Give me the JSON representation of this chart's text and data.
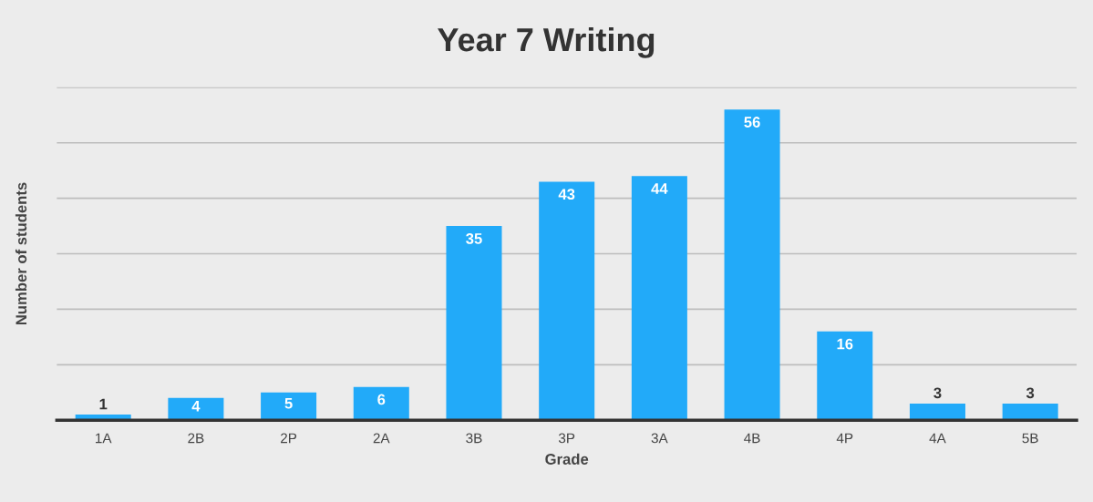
{
  "chart_data": {
    "type": "bar",
    "title": "Year 7 Writing",
    "xlabel": "Grade",
    "ylabel": "Number of students",
    "categories": [
      "1A",
      "2B",
      "2P",
      "2A",
      "3B",
      "3P",
      "3A",
      "4B",
      "4P",
      "4A",
      "5B"
    ],
    "values": [
      1,
      4,
      5,
      6,
      35,
      43,
      44,
      56,
      16,
      3,
      3
    ],
    "color": "#22aaf9",
    "ylim": [
      0,
      60
    ],
    "yticks": [
      {
        "value": 0,
        "label": null
      },
      {
        "value": 10,
        "label": null
      },
      {
        "value": 20,
        "label": null
      },
      {
        "value": 30,
        "label": null
      },
      {
        "value": 40,
        "label": null
      },
      {
        "value": 50,
        "label": null
      },
      {
        "value": 60,
        "label": null
      }
    ],
    "grid": "y",
    "data_labels": true
  }
}
